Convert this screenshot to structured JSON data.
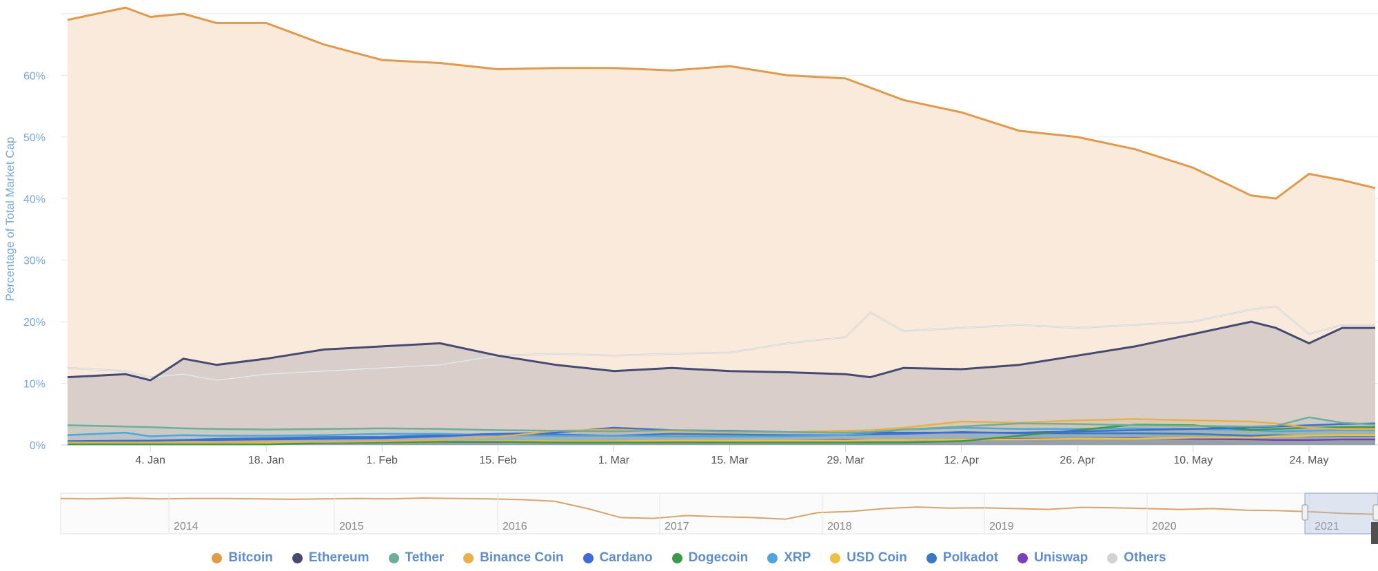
{
  "chart_data": {
    "type": "area",
    "ylabel": "Percentage of Total Market Cap",
    "ylim": [
      0,
      70
    ],
    "yticks": [
      "0%",
      "10%",
      "20%",
      "30%",
      "40%",
      "50%",
      "60%"
    ],
    "xticks": [
      "4. Jan",
      "18. Jan",
      "1. Feb",
      "15. Feb",
      "1. Mar",
      "15. Mar",
      "29. Mar",
      "12. Apr",
      "26. Apr",
      "10. May",
      "24. May"
    ],
    "x": [
      "2020-12-25",
      "2021-01-01",
      "2021-01-04",
      "2021-01-08",
      "2021-01-12",
      "2021-01-18",
      "2021-01-25",
      "2021-02-01",
      "2021-02-08",
      "2021-02-15",
      "2021-02-22",
      "2021-03-01",
      "2021-03-08",
      "2021-03-15",
      "2021-03-22",
      "2021-03-29",
      "2021-04-01",
      "2021-04-05",
      "2021-04-12",
      "2021-04-19",
      "2021-04-26",
      "2021-05-03",
      "2021-05-10",
      "2021-05-17",
      "2021-05-20",
      "2021-05-24",
      "2021-05-28",
      "2021-06-01"
    ],
    "series": [
      {
        "name": "Bitcoin",
        "color": "#e09a4a",
        "values": [
          69,
          71,
          69.5,
          70,
          68.5,
          68.5,
          65,
          62.5,
          62,
          61,
          61.2,
          61.2,
          60.8,
          61.5,
          60,
          59.5,
          58,
          56,
          54,
          51,
          50,
          48,
          45,
          40.5,
          40,
          44,
          43,
          41.7
        ]
      },
      {
        "name": "Ethereum",
        "color": "#464a72",
        "values": [
          11,
          11.5,
          10.5,
          14,
          13,
          14,
          15.5,
          16,
          16.5,
          14.5,
          13,
          12,
          12.5,
          12,
          11.8,
          11.5,
          11,
          12.5,
          12.3,
          13,
          14.5,
          16,
          18,
          20,
          19,
          16.5,
          19,
          19
        ]
      },
      {
        "name": "Others",
        "color": "#d3d3d3",
        "values": [
          12.5,
          12,
          11,
          11.5,
          10.5,
          11.5,
          12,
          12.5,
          13,
          14.5,
          14.8,
          14.5,
          14.8,
          15,
          16.5,
          17.5,
          21.5,
          18.5,
          19,
          19.5,
          19,
          19.5,
          20,
          22,
          22.5,
          18,
          19.5,
          19.5
        ]
      },
      {
        "name": "Tether",
        "color": "#6cae9b",
        "values": [
          3.2,
          3,
          2.9,
          2.7,
          2.6,
          2.5,
          2.6,
          2.7,
          2.6,
          2.4,
          2.3,
          2.2,
          2.4,
          2.2,
          2.1,
          2,
          2.1,
          2.5,
          3,
          3.5,
          3.4,
          3.2,
          3.1,
          3,
          3.1,
          4.5,
          3.6,
          3.3
        ]
      },
      {
        "name": "Binance Coin",
        "color": "#e8b04a",
        "values": [
          0.4,
          0.4,
          0.4,
          0.4,
          0.4,
          0.5,
          0.5,
          0.6,
          0.8,
          1.3,
          2.3,
          2.5,
          2.2,
          2.1,
          2.1,
          2.3,
          2.4,
          2.8,
          3.8,
          3.6,
          4,
          4.2,
          4,
          3.8,
          3.5,
          2.8,
          2.6,
          2.6
        ]
      },
      {
        "name": "Cardano",
        "color": "#3d6cd6",
        "values": [
          0.6,
          0.7,
          0.7,
          0.8,
          0.8,
          0.9,
          1,
          1.1,
          1.4,
          1.8,
          2,
          2.8,
          2.4,
          2.3,
          2.1,
          2,
          2,
          2,
          2,
          2,
          2.2,
          2.4,
          2.6,
          2.8,
          3,
          3.2,
          3.4,
          3.5
        ]
      },
      {
        "name": "Dogecoin",
        "color": "#3a9a4a",
        "values": [
          0.1,
          0.1,
          0.1,
          0.1,
          0.1,
          0.1,
          0.3,
          0.4,
          0.5,
          0.5,
          0.4,
          0.4,
          0.4,
          0.4,
          0.4,
          0.4,
          0.4,
          0.4,
          0.6,
          1.5,
          2.4,
          3.3,
          3.2,
          2.4,
          2.6,
          2.8,
          2.9,
          2.9
        ]
      },
      {
        "name": "XRP",
        "color": "#4ea6dd",
        "values": [
          1.6,
          2,
          1.4,
          1.6,
          1.5,
          1.5,
          1.6,
          1.8,
          1.8,
          1.6,
          1.5,
          1.5,
          1.4,
          1.4,
          1.4,
          1.6,
          1.9,
          2.5,
          2.8,
          2.6,
          2.6,
          2.7,
          2.6,
          2.4,
          2.2,
          2.3,
          2.4,
          2.4
        ]
      },
      {
        "name": "USD Coin",
        "color": "#f1c040",
        "values": [
          0.3,
          0.3,
          0.3,
          0.3,
          0.3,
          0.3,
          0.4,
          0.5,
          0.5,
          0.6,
          0.6,
          0.6,
          0.7,
          0.7,
          0.7,
          0.7,
          0.8,
          0.8,
          0.9,
          0.9,
          1,
          1,
          1.2,
          1.2,
          1.4,
          1.5,
          1.6,
          1.6
        ]
      },
      {
        "name": "Polkadot",
        "color": "#3a78c4",
        "values": [
          0.6,
          0.6,
          0.7,
          0.8,
          1,
          1.1,
          1.3,
          1.3,
          1.6,
          1.8,
          1.7,
          1.5,
          1.8,
          1.7,
          1.6,
          1.6,
          1.7,
          1.8,
          2.1,
          1.9,
          1.9,
          1.9,
          1.8,
          1.5,
          1.6,
          1.4,
          1.5,
          1.5
        ]
      },
      {
        "name": "Uniswap",
        "color": "#7a3fbf",
        "values": [
          0.2,
          0.2,
          0.2,
          0.2,
          0.2,
          0.3,
          0.4,
          0.5,
          0.5,
          0.5,
          0.6,
          0.6,
          0.6,
          0.7,
          0.7,
          0.8,
          0.8,
          0.8,
          0.9,
          1,
          1,
          1.1,
          1,
          0.9,
          0.8,
          0.8,
          0.9,
          0.9
        ]
      }
    ],
    "navigator": {
      "labels": [
        "2014",
        "2015",
        "2016",
        "2017",
        "2018",
        "2019",
        "2020",
        "2021"
      ],
      "values": [
        87,
        86,
        88,
        86,
        87,
        87,
        86,
        85,
        86,
        87,
        86,
        88,
        87,
        86,
        84,
        80,
        62,
        40,
        38,
        45,
        42,
        40,
        36,
        52,
        55,
        62,
        66,
        63,
        64,
        62,
        60,
        65,
        64,
        62,
        60,
        62,
        58,
        57,
        54,
        50,
        48
      ]
    },
    "legend_position": "bottom",
    "grid": true
  }
}
